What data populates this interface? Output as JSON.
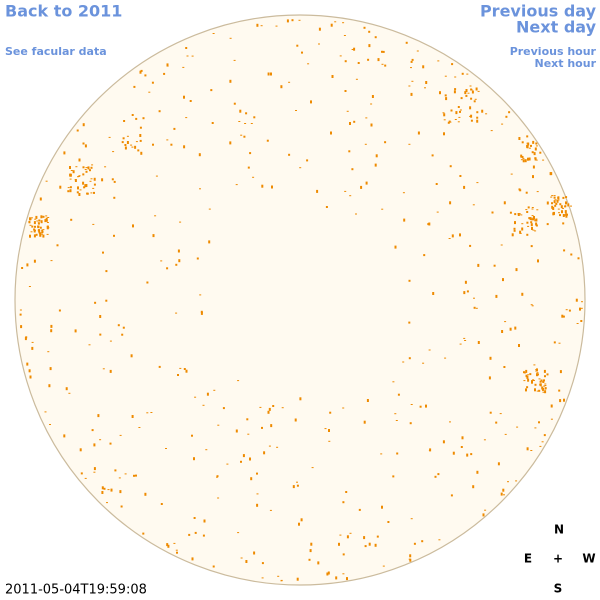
{
  "nav": {
    "back": "Back to 2011",
    "facular": "See facular data",
    "previous_day": "Previous day",
    "next_day": "Next day",
    "previous_hour": "Previous hour",
    "next_hour": "Next hour"
  },
  "compass": {
    "north": "N",
    "east": "E",
    "center": "+",
    "west": "W",
    "south": "S"
  },
  "timestamp": "2011-05-04T19:59:08"
}
